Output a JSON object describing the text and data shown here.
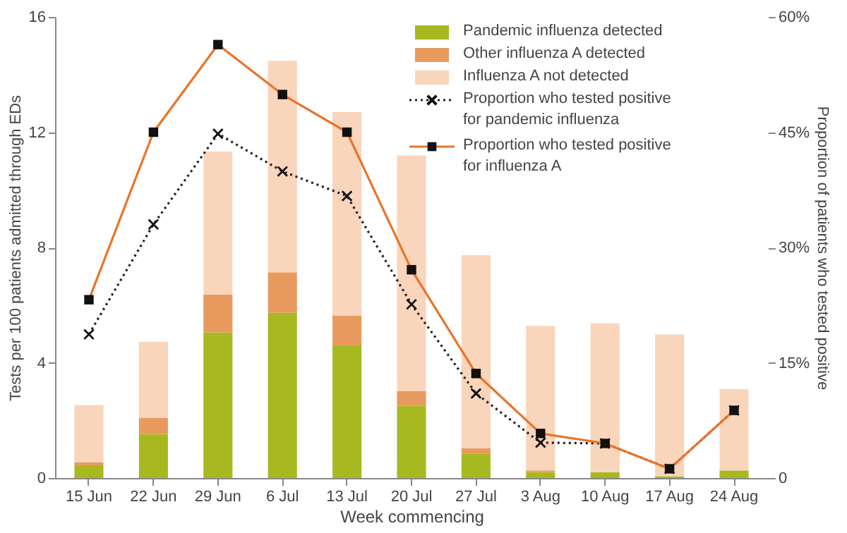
{
  "chart_data": {
    "type": "bar",
    "stacked": true,
    "xlabel": "Week commencing",
    "ylabel": "Tests per 100 patients admitted through EDs",
    "y2label": "Proportion of patients who tested positive",
    "categories": [
      "15 Jun",
      "22 Jun",
      "29 Jun",
      "6 Jul",
      "13 Jul",
      "20 Jul",
      "27 Jul",
      "3 Aug",
      "10 Aug",
      "17 Aug",
      "24 Aug"
    ],
    "series": [
      {
        "name": "Pandemic influenza detected",
        "color": "#a8b820",
        "values": [
          0.44,
          1.53,
          5.05,
          5.74,
          4.6,
          2.5,
          0.85,
          0.2,
          0.2,
          0.06,
          0.26
        ]
      },
      {
        "name": "Other influenza A detected",
        "color": "#e89a5e",
        "values": [
          0.11,
          0.56,
          1.31,
          1.4,
          1.04,
          0.52,
          0.19,
          0.06,
          0,
          0,
          0
        ]
      },
      {
        "name": "Influenza A not detected",
        "color": "#f9d5bc",
        "values": [
          1.98,
          2.64,
          4.97,
          7.34,
          7.06,
          8.17,
          6.69,
          5.02,
          5.17,
          4.92,
          2.82
        ]
      },
      {
        "name": "Proportion who tested positive for pandemic influenza",
        "type": "line",
        "axis": "y2",
        "color": "#222222",
        "marker": "cross",
        "line_style": "dotted",
        "values": [
          18.7,
          33.0,
          44.8,
          39.9,
          36.7,
          22.6,
          11.0,
          4.6,
          4.5,
          1.2,
          8.8
        ]
      },
      {
        "name": "Proportion who tested positive for influenza A",
        "type": "line",
        "axis": "y2",
        "color": "#e8742a",
        "marker": "square",
        "line_style": "solid",
        "values": [
          23.2,
          45.0,
          56.4,
          49.9,
          45.0,
          27.1,
          13.6,
          5.8,
          4.5,
          1.2,
          8.8
        ]
      }
    ],
    "ylim": [
      0,
      16
    ],
    "yticks": [
      0,
      4,
      8,
      12,
      16
    ],
    "y2lim": [
      0,
      60
    ],
    "y2ticks": [
      0,
      {
        "value": 15,
        "label": "15%"
      },
      {
        "value": 30,
        "label": "30%"
      },
      {
        "value": 45,
        "label": "45%"
      },
      {
        "value": 60,
        "label": "60%"
      }
    ],
    "legend": "top right",
    "grid": false
  }
}
